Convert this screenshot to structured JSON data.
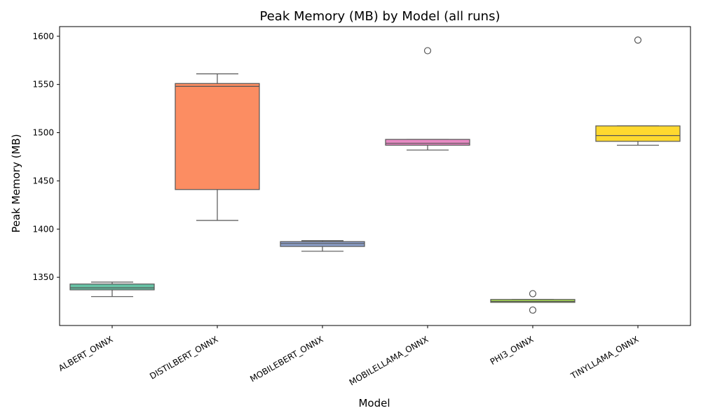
{
  "chart_data": {
    "type": "box",
    "title": "Peak Memory (MB) by Model (all runs)",
    "xlabel": "Model",
    "ylabel": "Peak Memory (MB)",
    "ylim": [
      1300,
      1610
    ],
    "yticks": [
      1350,
      1400,
      1450,
      1500,
      1550,
      1600
    ],
    "grid": false,
    "categories": [
      "ALBERT_ONNX",
      "DISTILBERT_ONNX",
      "MOBILEBERT_ONNX",
      "MOBILELLAMA_ONNX",
      "PHI3_ONNX",
      "TINYLLAMA_ONNX"
    ],
    "series": [
      {
        "category": "ALBERT_ONNX",
        "color": "#66c2a5",
        "whisker_low": 1330,
        "q1": 1337,
        "median": 1339,
        "q3": 1343,
        "whisker_high": 1345,
        "outliers": []
      },
      {
        "category": "DISTILBERT_ONNX",
        "color": "#fc8d62",
        "whisker_low": 1409,
        "q1": 1441,
        "median": 1548,
        "q3": 1551,
        "whisker_high": 1561,
        "outliers": []
      },
      {
        "category": "MOBILEBERT_ONNX",
        "color": "#8da0cb",
        "whisker_low": 1377,
        "q1": 1382,
        "median": 1385,
        "q3": 1387,
        "whisker_high": 1388,
        "outliers": []
      },
      {
        "category": "MOBILELLAMA_ONNX",
        "color": "#e78ac3",
        "whisker_low": 1482,
        "q1": 1487,
        "median": 1489,
        "q3": 1493,
        "whisker_high": 1493,
        "outliers": [
          1585
        ]
      },
      {
        "category": "PHI3_ONNX",
        "color": "#a6d854",
        "whisker_low": 1324,
        "q1": 1324,
        "median": 1325,
        "q3": 1327,
        "whisker_high": 1327,
        "outliers": [
          1333,
          1316
        ]
      },
      {
        "category": "TINYLLAMA_ONNX",
        "color": "#ffd92f",
        "whisker_low": 1487,
        "q1": 1491,
        "median": 1497,
        "q3": 1507,
        "whisker_high": 1507,
        "outliers": [
          1596
        ]
      }
    ]
  }
}
